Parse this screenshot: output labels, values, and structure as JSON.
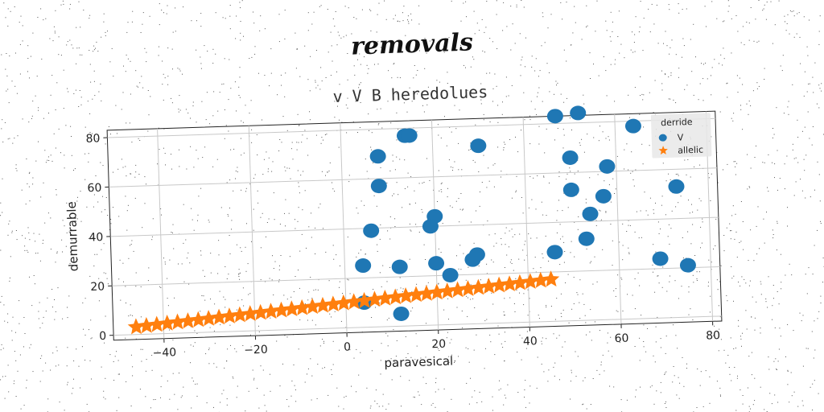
{
  "suptitle": "removals",
  "chart_data": {
    "type": "scatter",
    "title": "v V B heredolues",
    "xlabel": "paravesical",
    "ylabel": "demurrable",
    "xlim": [
      -51,
      82
    ],
    "ylim": [
      -2,
      83
    ],
    "xticks": [
      -40,
      -20,
      0,
      20,
      40,
      60,
      80
    ],
    "yticks": [
      0,
      20,
      40,
      60,
      80
    ],
    "grid": true,
    "legend": {
      "title": "derride",
      "placement": "top-right"
    },
    "series": [
      {
        "name": "V",
        "marker": "circle",
        "color": "#1f77b4",
        "points": [
          [
            4,
            10
          ],
          [
            12,
            5
          ],
          [
            4,
            25
          ],
          [
            6,
            39
          ],
          [
            8,
            57
          ],
          [
            8,
            69
          ],
          [
            14,
            77
          ],
          [
            15,
            77
          ],
          [
            12,
            24
          ],
          [
            20,
            25
          ],
          [
            20,
            44
          ],
          [
            19,
            40
          ],
          [
            23,
            20
          ],
          [
            28,
            26
          ],
          [
            29,
            28
          ],
          [
            30,
            72
          ],
          [
            46,
            28
          ],
          [
            47,
            83
          ],
          [
            52,
            84
          ],
          [
            50,
            66
          ],
          [
            50,
            53
          ],
          [
            53,
            33
          ],
          [
            54,
            43
          ],
          [
            57,
            50
          ],
          [
            58,
            62
          ],
          [
            64,
            78
          ],
          [
            73,
            53
          ],
          [
            69,
            24
          ],
          [
            75,
            21
          ]
        ]
      },
      {
        "name": "allelic",
        "marker": "star",
        "color": "#ff7f0e",
        "x_start": -46,
        "x_end": 45,
        "y_start": 3,
        "y_end": 17,
        "count": 41
      }
    ]
  }
}
